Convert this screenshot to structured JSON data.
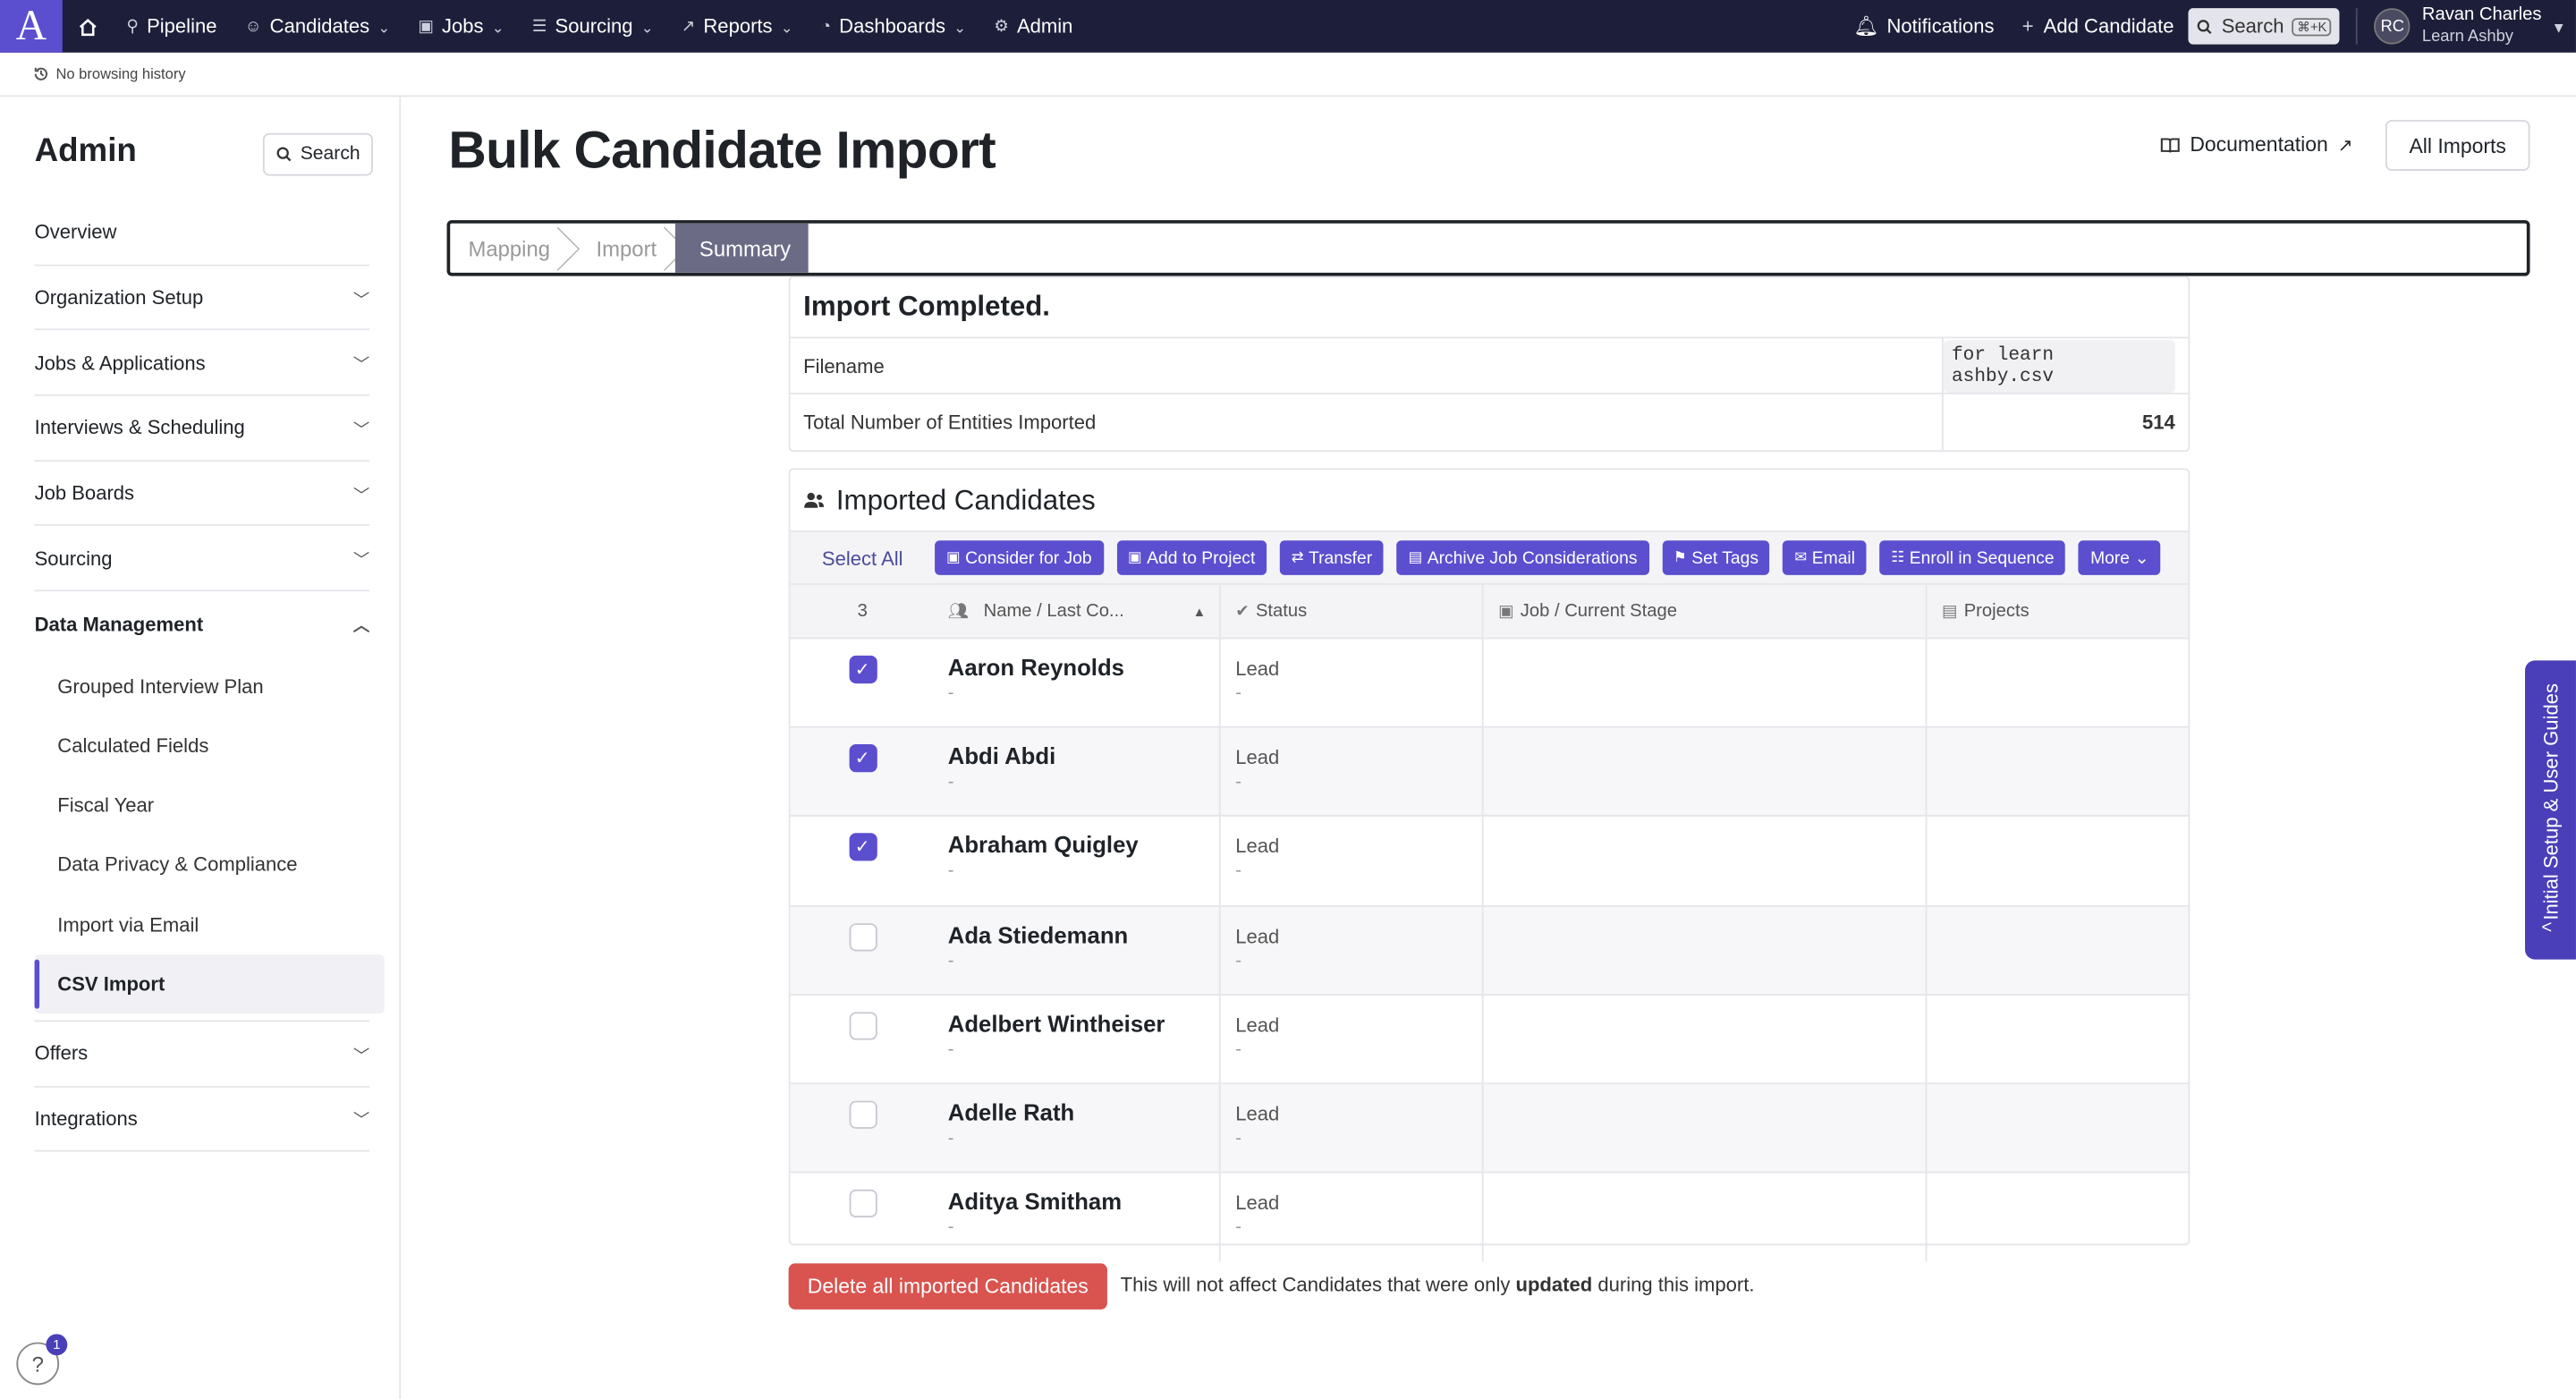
{
  "topnav": {
    "items": [
      {
        "label": "Pipeline",
        "icon": "filter-icon",
        "chevron": false
      },
      {
        "label": "Candidates",
        "icon": "users-icon",
        "chevron": true
      },
      {
        "label": "Jobs",
        "icon": "briefcase-icon",
        "chevron": true
      },
      {
        "label": "Sourcing",
        "icon": "sourcing-icon",
        "chevron": true
      },
      {
        "label": "Reports",
        "icon": "chart-icon",
        "chevron": true
      },
      {
        "label": "Dashboards",
        "icon": "dashboard-icon",
        "chevron": true
      },
      {
        "label": "Admin",
        "icon": "gear-icon",
        "chevron": false
      }
    ],
    "notifications_label": "Notifications",
    "add_candidate_label": "Add Candidate",
    "search_label": "Search",
    "search_shortcut": "⌘+K",
    "avatar_initials": "RC",
    "user_name": "Ravan Charles",
    "user_org": "Learn Ashby"
  },
  "history": {
    "label": "No browsing history"
  },
  "sidebar": {
    "title": "Admin",
    "search_label": "Search",
    "overview": "Overview",
    "sections_top": [
      "Organization Setup",
      "Jobs & Applications",
      "Interviews & Scheduling",
      "Job Boards",
      "Sourcing"
    ],
    "data_management": "Data Management",
    "sub_items": [
      "Grouped Interview Plan",
      "Calculated Fields",
      "Fiscal Year",
      "Data Privacy & Compliance",
      "Import via Email",
      "CSV Import"
    ],
    "sections_bottom": [
      "Offers",
      "Integrations"
    ],
    "help_badge": "1"
  },
  "main": {
    "title": "Bulk Candidate Import",
    "docs_label": "Documentation",
    "all_imports_label": "All Imports",
    "steps": [
      "Mapping",
      "Import",
      "Summary"
    ],
    "summary": {
      "title": "Import Completed.",
      "filename_label": "Filename",
      "filename_value": "for learn ashby.csv",
      "total_label": "Total Number of Entities Imported",
      "total_value": "514"
    },
    "candidates": {
      "title": "Imported Candidates",
      "select_all": "Select All",
      "actions": [
        "Consider for Job",
        "Add to Project",
        "Transfer",
        "Archive Job Considerations",
        "Set Tags",
        "Email",
        "Enroll in Sequence",
        "More"
      ],
      "selected_count": "3",
      "columns": [
        "Name / Last Co...",
        "Status",
        "Job / Current Stage",
        "Projects"
      ],
      "rows": [
        {
          "name": "Aaron Reynolds",
          "sub": "-",
          "status": "Lead",
          "status_sub": "-",
          "checked": true
        },
        {
          "name": "Abdi Abdi",
          "sub": "-",
          "status": "Lead",
          "status_sub": "-",
          "checked": true
        },
        {
          "name": "Abraham Quigley",
          "sub": "-",
          "status": "Lead",
          "status_sub": "-",
          "checked": true
        },
        {
          "name": "Ada Stiedemann",
          "sub": "-",
          "status": "Lead",
          "status_sub": "-",
          "checked": false
        },
        {
          "name": "Adelbert Wintheiser",
          "sub": "-",
          "status": "Lead",
          "status_sub": "-",
          "checked": false
        },
        {
          "name": "Adelle Rath",
          "sub": "-",
          "status": "Lead",
          "status_sub": "-",
          "checked": false
        },
        {
          "name": "Aditya Smitham",
          "sub": "-",
          "status": "Lead",
          "status_sub": "-",
          "checked": false
        }
      ]
    },
    "delete_label": "Delete all imported Candidates",
    "delete_note_pre": "This will not affect Candidates that were only ",
    "delete_note_bold": "updated",
    "delete_note_post": " during this import."
  },
  "sidetab": {
    "label": "Initial Setup & User Guides"
  },
  "colors": {
    "accent": "#5b4fcf",
    "nav_bg": "#1d1f3a",
    "danger": "#d9534f"
  }
}
